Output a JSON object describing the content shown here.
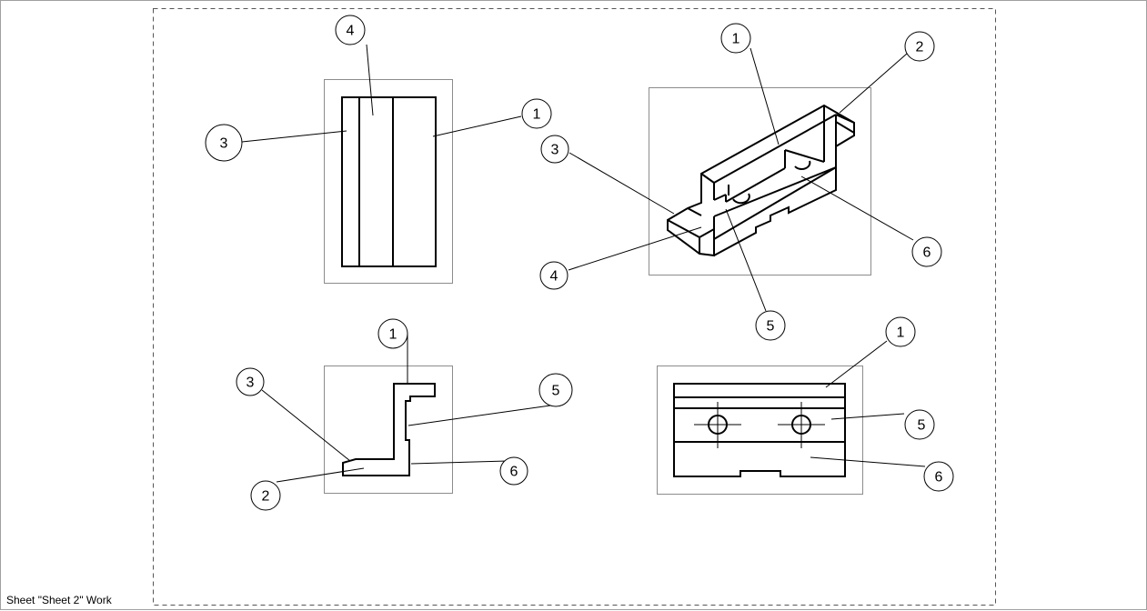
{
  "status_bar": {
    "text": "Sheet \"Sheet 2\" Work"
  },
  "colors": {
    "sheet_border": "#a0a0a0",
    "view_frame": "#8c8c8c",
    "lines": "#000000",
    "background": "#ffffff"
  },
  "views": {
    "top_view": {
      "balloons": [
        "4",
        "1",
        "3"
      ]
    },
    "iso_view": {
      "balloons": [
        "1",
        "2",
        "3",
        "6",
        "4",
        "5"
      ]
    },
    "side_view": {
      "balloons": [
        "1",
        "3",
        "5",
        "6",
        "2"
      ]
    },
    "front_view": {
      "balloons": [
        "1",
        "5",
        "6"
      ]
    }
  }
}
